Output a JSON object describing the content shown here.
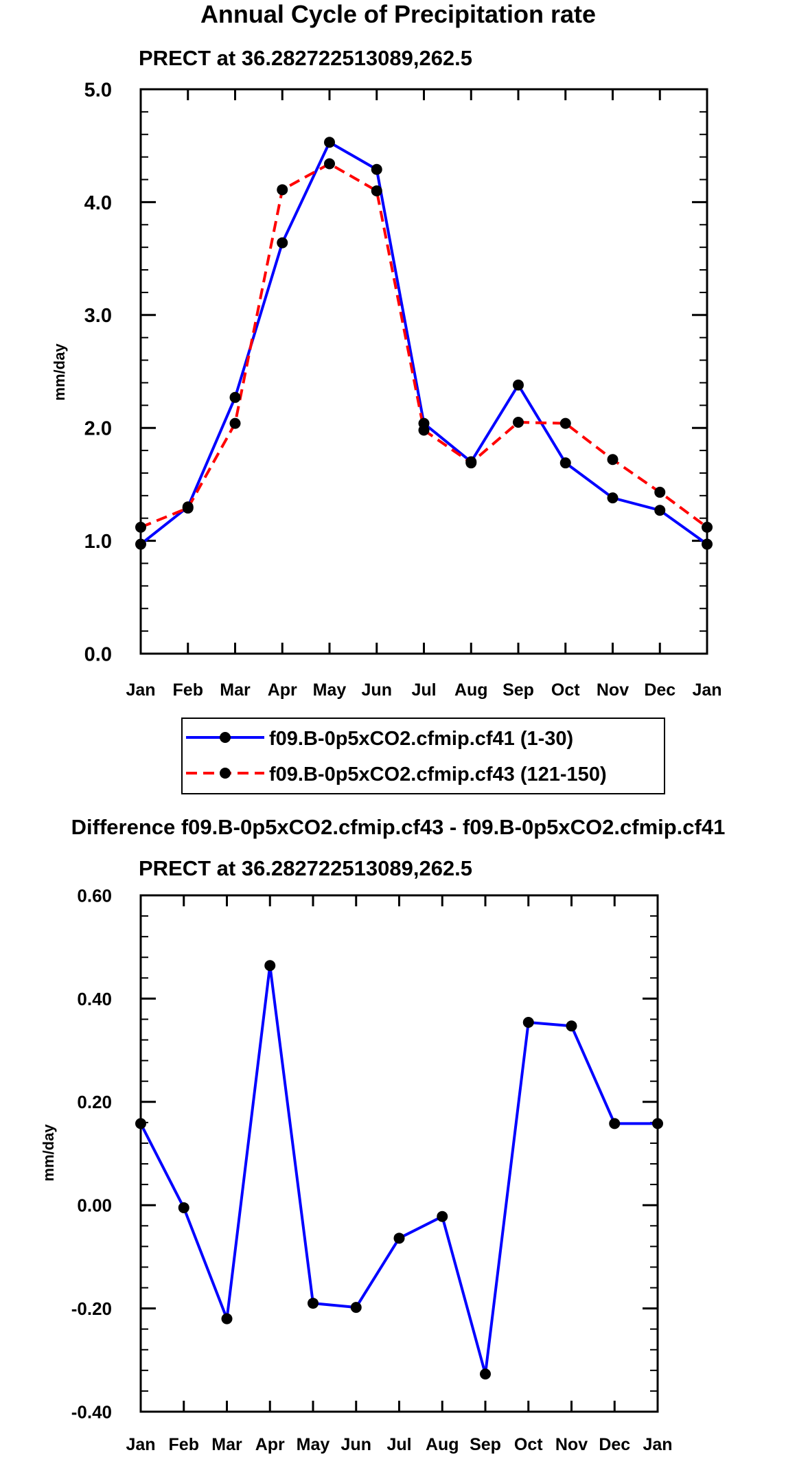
{
  "figure_title": "Annual Cycle of Precipitation rate",
  "chart_data": [
    {
      "type": "line",
      "title": "Annual Cycle of Precipitation rate",
      "subtitle": "PRECT at 36.282722513089,262.5",
      "xlabel": "",
      "ylabel": "mm/day",
      "categories": [
        "Jan",
        "Feb",
        "Mar",
        "Apr",
        "May",
        "Jun",
        "Jul",
        "Aug",
        "Sep",
        "Oct",
        "Nov",
        "Dec",
        "Jan"
      ],
      "ylim": [
        0,
        5
      ],
      "yticks": [
        0,
        1,
        2,
        3,
        4,
        5
      ],
      "ytick_labels": [
        "0.0",
        "1.0",
        "2.0",
        "3.0",
        "4.0",
        "5.0"
      ],
      "grid": false,
      "legend_position": "bottom",
      "series": [
        {
          "name": "f09.B-0p5xCO2.cfmip.cf41 (1-30)",
          "color": "#0000ff",
          "dash": "solid",
          "values": [
            0.97,
            1.3,
            2.27,
            3.64,
            4.53,
            4.29,
            2.04,
            1.7,
            2.38,
            1.69,
            1.38,
            1.27,
            0.97
          ]
        },
        {
          "name": "f09.B-0p5xCO2.cfmip.cf43 (121-150)",
          "color": "#ff0000",
          "dash": "dashed",
          "values": [
            1.12,
            1.29,
            2.04,
            4.11,
            4.34,
            4.1,
            1.98,
            1.69,
            2.05,
            2.04,
            1.72,
            1.43,
            1.12
          ]
        }
      ]
    },
    {
      "type": "line",
      "title": "Difference f09.B-0p5xCO2.cfmip.cf43 - f09.B-0p5xCO2.cfmip.cf41",
      "subtitle": "PRECT at 36.282722513089,262.5",
      "xlabel": "",
      "ylabel": "mm/day",
      "categories": [
        "Jan",
        "Feb",
        "Mar",
        "Apr",
        "May",
        "Jun",
        "Jul",
        "Aug",
        "Sep",
        "Oct",
        "Nov",
        "Dec",
        "Jan"
      ],
      "ylim": [
        -0.4,
        0.6
      ],
      "yticks": [
        -0.4,
        -0.2,
        0.0,
        0.2,
        0.4,
        0.6
      ],
      "ytick_labels": [
        "-0.40",
        "-0.20",
        "0.00",
        "0.20",
        "0.40",
        "0.60"
      ],
      "grid": false,
      "series": [
        {
          "name": "difference",
          "color": "#0000ff",
          "dash": "solid",
          "values": [
            0.158,
            -0.005,
            -0.22,
            0.464,
            -0.19,
            -0.198,
            -0.064,
            -0.022,
            -0.327,
            0.354,
            0.347,
            0.158,
            0.158
          ]
        }
      ]
    }
  ]
}
